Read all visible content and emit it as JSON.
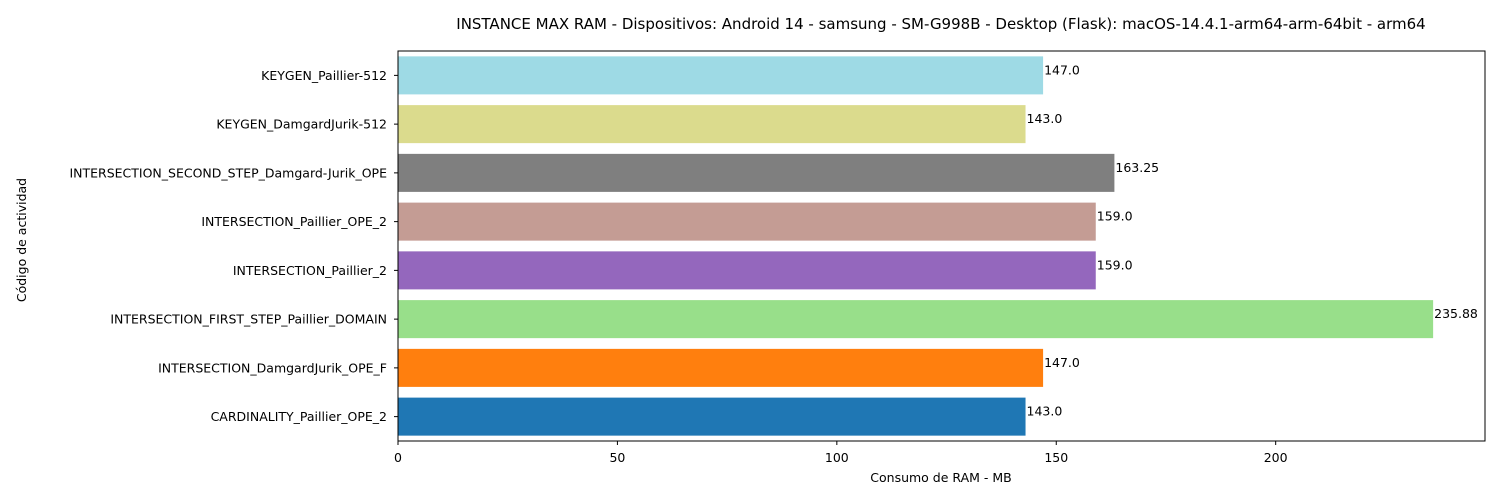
{
  "chart_data": {
    "type": "bar",
    "orientation": "horizontal",
    "title": "INSTANCE MAX RAM - Dispositivos: Android 14 - samsung - SM-G998B - Desktop (Flask): macOS-14.4.1-arm64-arm-64bit - arm64",
    "xlabel": "Consumo de RAM - MB",
    "ylabel": "Código de actividad",
    "xlim": [
      0,
      247.7
    ],
    "x_ticks": [
      0,
      50,
      100,
      150,
      200
    ],
    "grid": false,
    "categories": [
      "CARDINALITY_Paillier_OPE_2",
      "INTERSECTION_DamgardJurik_OPE_F",
      "INTERSECTION_FIRST_STEP_Paillier_DOMAIN",
      "INTERSECTION_Paillier_2",
      "INTERSECTION_Paillier_OPE_2",
      "INTERSECTION_SECOND_STEP_Damgard-Jurik_OPE",
      "KEYGEN_DamgardJurik-512",
      "KEYGEN_Paillier-512"
    ],
    "values": [
      143.0,
      147.0,
      235.88,
      159.0,
      159.0,
      163.25,
      143.0,
      147.0
    ],
    "value_labels": [
      "143.0",
      "147.0",
      "235.88",
      "159.0",
      "159.0",
      "163.25",
      "143.0",
      "147.0"
    ],
    "colors": [
      "#1f77b4",
      "#ff7f0e",
      "#98df8a",
      "#9467bd",
      "#c49c94",
      "#7f7f7f",
      "#dbdb8d",
      "#9edae5"
    ]
  }
}
